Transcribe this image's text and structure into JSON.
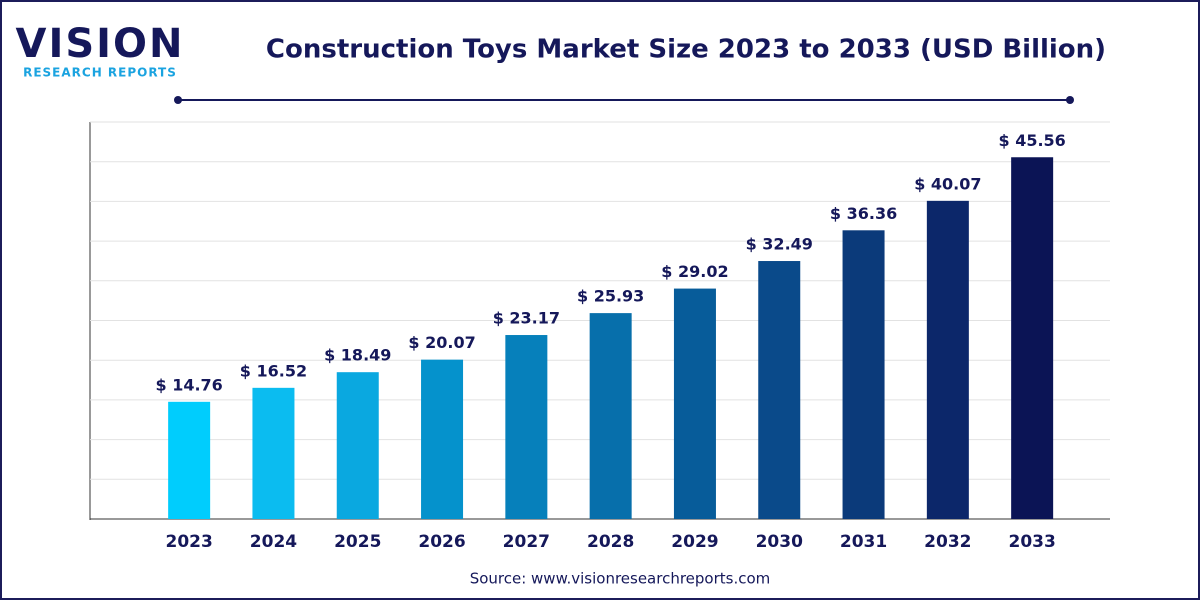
{
  "brand": {
    "name": "VISION",
    "tagline": "RESEARCH REPORTS"
  },
  "chart_data": {
    "type": "bar",
    "title": "Construction Toys Market Size 2023 to 2033 (USD Billion)",
    "categories": [
      "2023",
      "2024",
      "2025",
      "2026",
      "2027",
      "2028",
      "2029",
      "2030",
      "2031",
      "2032",
      "2033"
    ],
    "values": [
      14.76,
      16.52,
      18.49,
      20.07,
      23.17,
      25.93,
      29.02,
      32.49,
      36.36,
      40.07,
      45.56
    ],
    "value_labels": [
      "$ 14.76",
      "$ 16.52",
      "$ 18.49",
      "$ 20.07",
      "$ 23.17",
      "$ 25.93",
      "$ 29.02",
      "$ 32.49",
      "$ 36.36",
      "$ 40.07",
      "$ 45.56"
    ],
    "colors": [
      "#00cdfd",
      "#0bbcf0",
      "#0aa8e0",
      "#0592cc",
      "#0680bb",
      "#076fab",
      "#075c9a",
      "#0a4a8a",
      "#0b3a7a",
      "#0c276a",
      "#0b1455"
    ],
    "ylim": [
      0,
      50
    ],
    "yticks": [
      0,
      5,
      10,
      15,
      20,
      25,
      30,
      35,
      40,
      45,
      50
    ],
    "grid": true,
    "source": "Source: www.visionresearchreports.com"
  }
}
